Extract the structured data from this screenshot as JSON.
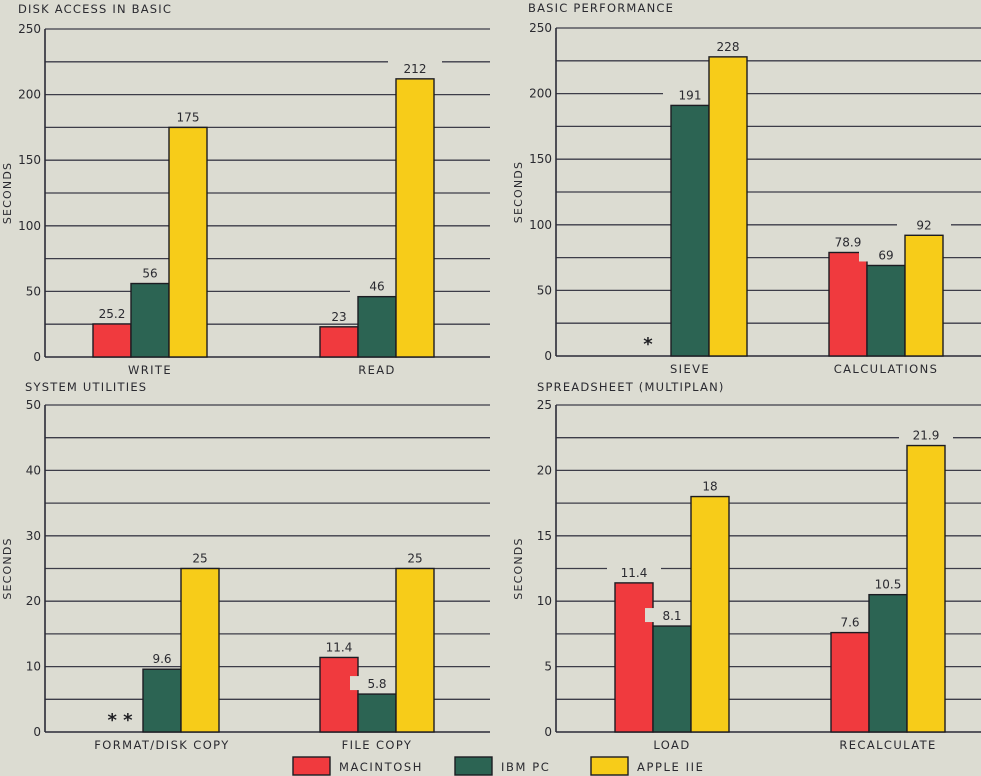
{
  "colors": {
    "macintosh": "#f03a3e",
    "ibm_pc": "#2c6453",
    "apple_iie": "#f7cc19",
    "paper": "#dcdcd2",
    "ink": "#2a2a30"
  },
  "legend": [
    {
      "key": "macintosh",
      "label": "MACINTOSH"
    },
    {
      "key": "ibm_pc",
      "label": "IBM PC"
    },
    {
      "key": "apple_iie",
      "label": "APPLE IIE"
    }
  ],
  "chart_data": [
    {
      "type": "bar",
      "title": "DISK ACCESS IN BASIC",
      "ylabel": "SECONDS",
      "xlabel": "",
      "ylim": [
        0,
        250
      ],
      "yticks": [
        0,
        50,
        100,
        150,
        200,
        250
      ],
      "grid_step": 25,
      "categories": [
        "WRITE",
        "READ"
      ],
      "series": [
        {
          "name": "MACINTOSH",
          "values": [
            25.2,
            23
          ],
          "labels": [
            "25.2",
            "23"
          ]
        },
        {
          "name": "IBM PC",
          "values": [
            56,
            46
          ],
          "labels": [
            "56",
            "46"
          ]
        },
        {
          "name": "APPLE IIE",
          "values": [
            175,
            212
          ],
          "labels": [
            "175",
            "212"
          ]
        }
      ],
      "notes": []
    },
    {
      "type": "bar",
      "title": "BASIC PERFORMANCE",
      "ylabel": "SECONDS",
      "xlabel": "",
      "ylim": [
        0,
        250
      ],
      "yticks": [
        0,
        50,
        100,
        150,
        200,
        250
      ],
      "grid_step": 25,
      "categories": [
        "SIEVE",
        "CALCULATIONS"
      ],
      "series": [
        {
          "name": "MACINTOSH",
          "values": [
            null,
            78.9
          ],
          "labels": [
            "",
            "78.9"
          ]
        },
        {
          "name": "IBM PC",
          "values": [
            191,
            69
          ],
          "labels": [
            "191",
            "69"
          ]
        },
        {
          "name": "APPLE IIE",
          "values": [
            228,
            92
          ],
          "labels": [
            "228",
            "92"
          ]
        }
      ],
      "notes": [
        {
          "category": 0,
          "series": 0,
          "text": "*"
        }
      ]
    },
    {
      "type": "bar",
      "title": "SYSTEM UTILITIES",
      "ylabel": "SECONDS",
      "xlabel": "",
      "ylim": [
        0,
        50
      ],
      "yticks": [
        0,
        10,
        20,
        30,
        40,
        50
      ],
      "grid_step": 5,
      "categories": [
        "FORMAT/DISK COPY",
        "FILE COPY"
      ],
      "series": [
        {
          "name": "MACINTOSH",
          "values": [
            null,
            11.4
          ],
          "labels": [
            "",
            "11.4"
          ]
        },
        {
          "name": "IBM PC",
          "values": [
            9.6,
            5.8
          ],
          "labels": [
            "9.6",
            "5.8"
          ]
        },
        {
          "name": "APPLE IIE",
          "values": [
            25,
            25
          ],
          "labels": [
            "25",
            "25"
          ]
        }
      ],
      "notes": [
        {
          "category": 0,
          "series": 0,
          "text": "* *"
        }
      ]
    },
    {
      "type": "bar",
      "title": "SPREADSHEET (MULTIPLAN)",
      "ylabel": "SECONDS",
      "xlabel": "",
      "ylim": [
        0,
        25
      ],
      "yticks": [
        0,
        5,
        10,
        15,
        20,
        25
      ],
      "grid_step": 2.5,
      "categories": [
        "LOAD",
        "RECALCULATE"
      ],
      "series": [
        {
          "name": "MACINTOSH",
          "values": [
            11.4,
            7.6
          ],
          "labels": [
            "11.4",
            "7.6"
          ]
        },
        {
          "name": "IBM PC",
          "values": [
            8.1,
            10.5
          ],
          "labels": [
            "8.1",
            "10.5"
          ]
        },
        {
          "name": "APPLE IIE",
          "values": [
            18,
            21.9
          ],
          "labels": [
            "18",
            "21.9"
          ]
        }
      ],
      "notes": []
    }
  ]
}
